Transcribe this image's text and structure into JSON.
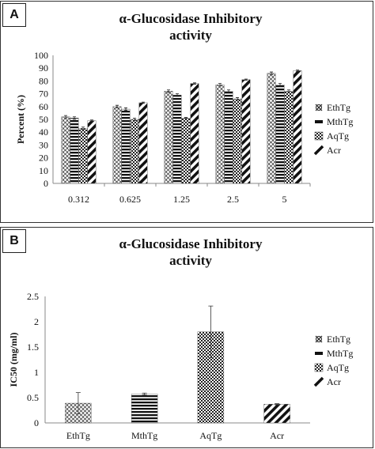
{
  "chart_data": [
    {
      "panel_label": "A",
      "type": "bar",
      "title_line1": "α-Glucosidase Inhibitory",
      "title_line2": "activity",
      "xlabel": "",
      "ylabel": "Percent (%)",
      "ylim": [
        0,
        100
      ],
      "ytick_step": 10,
      "yticks": [
        "0",
        "10",
        "20",
        "30",
        "40",
        "50",
        "60",
        "70",
        "80",
        "90",
        "100"
      ],
      "categories": [
        "0.312",
        "0.625",
        "1.25",
        "2.5",
        "5"
      ],
      "grid": false,
      "legend_position": "right",
      "series": [
        {
          "name": "EthTg",
          "pattern": "circles",
          "values": [
            52,
            60,
            72,
            77,
            86
          ],
          "errors": [
            1,
            1,
            1,
            1,
            1
          ]
        },
        {
          "name": "MthTg",
          "pattern": "hlines",
          "values": [
            51,
            58,
            69,
            72,
            77
          ],
          "errors": [
            1,
            1,
            1,
            1,
            1
          ]
        },
        {
          "name": "AqTg",
          "pattern": "checker",
          "values": [
            43,
            50,
            51,
            66,
            72
          ],
          "errors": [
            1,
            1,
            0.5,
            1,
            1
          ]
        },
        {
          "name": "Acr",
          "pattern": "diagonal",
          "values": [
            49,
            63,
            78,
            81,
            88
          ],
          "errors": [
            0.5,
            0.5,
            0.5,
            0.5,
            0.5
          ]
        }
      ]
    },
    {
      "panel_label": "B",
      "type": "bar",
      "title_line1": "α-Glucosidase Inhibitory",
      "title_line2": "activity",
      "xlabel": "",
      "ylabel": "IC50 (mg/ml)",
      "ylim": [
        0,
        2.5
      ],
      "ytick_step": 0.5,
      "yticks": [
        "0",
        "0.5",
        "1",
        "1.5",
        "2",
        "2.5"
      ],
      "categories": [
        "EthTg",
        "MthTg",
        "AqTg",
        "Acr"
      ],
      "grid": false,
      "legend_position": "right",
      "legend": [
        "EthTg",
        "MthTg",
        "AqTg",
        "Acr"
      ],
      "bar_patterns": [
        "circles",
        "hlines",
        "checker",
        "diagonal"
      ],
      "values": [
        0.39,
        0.57,
        1.8,
        0.37
      ],
      "errors": [
        0.21,
        0.02,
        0.51,
        0.01
      ]
    }
  ]
}
